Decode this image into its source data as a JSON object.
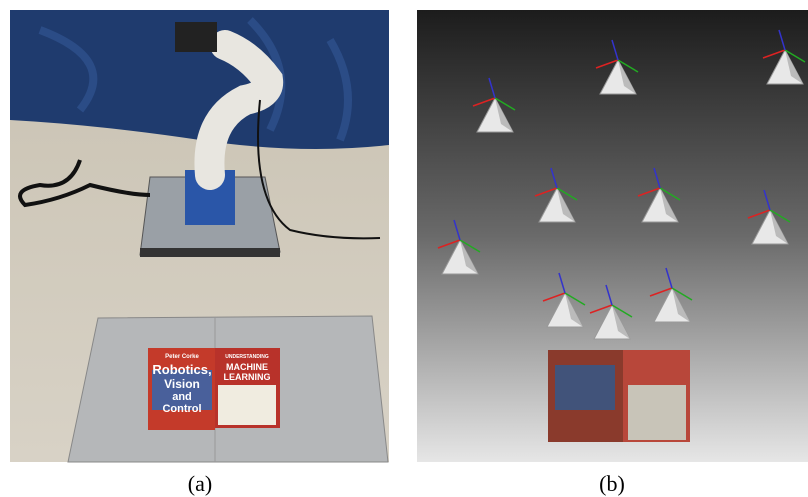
{
  "panel_a": {
    "caption": "(a)",
    "book_left": [
      "Peter Corke",
      "Robotics,",
      "Vision",
      "and",
      "Control"
    ],
    "book_right": [
      "UNDERSTANDING",
      "MACHINE",
      "LEARNING"
    ]
  },
  "panel_b": {
    "caption": "(b)"
  }
}
